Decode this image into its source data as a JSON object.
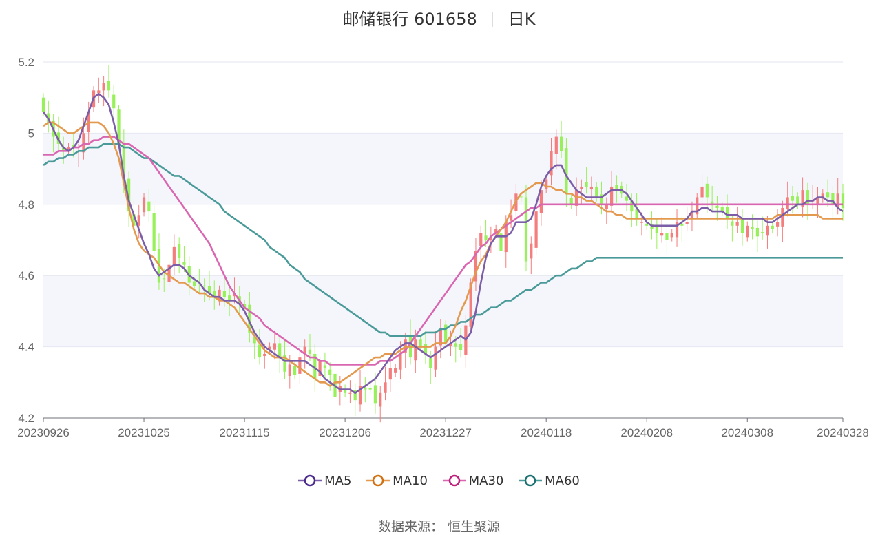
{
  "title": {
    "name": "邮储银行 601658",
    "period": "日K"
  },
  "source": "数据来源： 恒生聚源",
  "colors": {
    "up": "#f47d7d",
    "down": "#98f05a",
    "ma5": "#7b5ea7",
    "ma10": "#e39a4f",
    "ma30": "#d966b0",
    "ma60": "#4a9a9a"
  },
  "chart_data": {
    "type": "candlestick",
    "ylim": [
      4.2,
      5.2
    ],
    "yticks": [
      "4.2",
      "4.4",
      "4.6",
      "4.8",
      "5"
    ],
    "ytick_top": "5.2",
    "xticks": [
      {
        "label": "20230926",
        "index": 0
      },
      {
        "label": "20231025",
        "index": 20
      },
      {
        "label": "20231115",
        "index": 40
      },
      {
        "label": "20231206",
        "index": 60
      },
      {
        "label": "20231227",
        "index": 80
      },
      {
        "label": "20240118",
        "index": 100
      },
      {
        "label": "20240208",
        "index": 120
      },
      {
        "label": "20240308",
        "index": 140
      },
      {
        "label": "20240328",
        "index": 159
      }
    ],
    "n": 160,
    "legend": [
      {
        "name": "MA5",
        "color": "#7b5ea7"
      },
      {
        "name": "MA10",
        "color": "#e39a4f"
      },
      {
        "name": "MA30",
        "color": "#d966b0"
      },
      {
        "name": "MA60",
        "color": "#4a9a9a"
      }
    ],
    "closes": [
      5.06,
      5.03,
      4.99,
      4.97,
      4.95,
      4.96,
      4.96,
      4.95,
      5.0,
      5.06,
      5.12,
      5.12,
      5.14,
      5.12,
      5.07,
      4.97,
      4.86,
      4.78,
      4.74,
      4.77,
      4.82,
      4.78,
      4.67,
      4.58,
      4.59,
      4.63,
      4.68,
      4.65,
      4.63,
      4.58,
      4.57,
      4.58,
      4.57,
      4.55,
      4.54,
      4.56,
      4.54,
      4.53,
      4.55,
      4.52,
      4.51,
      4.44,
      4.41,
      4.37,
      4.38,
      4.4,
      4.41,
      4.37,
      4.33,
      4.35,
      4.32,
      4.37,
      4.4,
      4.38,
      4.31,
      4.36,
      4.34,
      4.32,
      4.26,
      4.29,
      4.27,
      4.27,
      4.25,
      4.29,
      4.28,
      4.28,
      4.24,
      4.27,
      4.3,
      4.34,
      4.34,
      4.38,
      4.42,
      4.37,
      4.42,
      4.4,
      4.38,
      4.34,
      4.4,
      4.45,
      4.41,
      4.41,
      4.4,
      4.39,
      4.46,
      4.58,
      4.67,
      4.72,
      4.7,
      4.71,
      4.73,
      4.67,
      4.75,
      4.77,
      4.83,
      4.82,
      4.64,
      4.69,
      4.78,
      4.84,
      4.87,
      4.95,
      4.99,
      4.95,
      4.83,
      4.8,
      4.84,
      4.85,
      4.85,
      4.85,
      4.82,
      4.8,
      4.8,
      4.85,
      4.84,
      4.83,
      4.81,
      4.78,
      4.76,
      4.75,
      4.74,
      4.73,
      4.72,
      4.72,
      4.7,
      4.72,
      4.75,
      4.74,
      4.75,
      4.78,
      4.82,
      4.85,
      4.82,
      4.8,
      4.79,
      4.78,
      4.76,
      4.74,
      4.75,
      4.72,
      4.74,
      4.73,
      4.71,
      4.72,
      4.74,
      4.73,
      4.75,
      4.79,
      4.82,
      4.81,
      4.8,
      4.84,
      4.8,
      4.81,
      4.82,
      4.83,
      4.82,
      4.8,
      4.83,
      4.79
    ],
    "ma5": [
      5.06,
      5.04,
      5.01,
      4.98,
      4.96,
      4.95,
      4.96,
      4.98,
      5.02,
      5.06,
      5.1,
      5.11,
      5.1,
      5.08,
      5.03,
      4.97,
      4.88,
      4.81,
      4.77,
      4.73,
      4.69,
      4.66,
      4.62,
      4.6,
      4.61,
      4.62,
      4.63,
      4.63,
      4.62,
      4.6,
      4.59,
      4.58,
      4.56,
      4.55,
      4.54,
      4.54,
      4.53,
      4.53,
      4.53,
      4.52,
      4.5,
      4.47,
      4.44,
      4.42,
      4.4,
      4.39,
      4.38,
      4.37,
      4.36,
      4.36,
      4.36,
      4.36,
      4.36,
      4.35,
      4.34,
      4.33,
      4.31,
      4.3,
      4.29,
      4.28,
      4.28,
      4.28,
      4.27,
      4.28,
      4.29,
      4.3,
      4.31,
      4.33,
      4.35,
      4.37,
      4.39,
      4.4,
      4.41,
      4.41,
      4.4,
      4.39,
      4.38,
      4.37,
      4.38,
      4.39,
      4.4,
      4.41,
      4.42,
      4.43,
      4.42,
      4.44,
      4.5,
      4.58,
      4.65,
      4.69,
      4.71,
      4.71,
      4.71,
      4.72,
      4.75,
      4.75,
      4.75,
      4.76,
      4.8,
      4.85,
      4.88,
      4.9,
      4.91,
      4.91,
      4.88,
      4.86,
      4.84,
      4.83,
      4.82,
      4.82,
      4.82,
      4.82,
      4.83,
      4.84,
      4.84,
      4.84,
      4.83,
      4.81,
      4.79,
      4.77,
      4.75,
      4.74,
      4.74,
      4.74,
      4.74,
      4.74,
      4.74,
      4.75,
      4.76,
      4.78,
      4.78,
      4.79,
      4.79,
      4.78,
      4.78,
      4.78,
      4.77,
      4.77,
      4.77,
      4.76,
      4.76,
      4.76,
      4.76,
      4.76,
      4.75,
      4.75,
      4.76,
      4.77,
      4.78,
      4.79,
      4.8,
      4.8,
      4.81,
      4.81,
      4.82,
      4.82,
      4.81,
      4.81,
      4.79,
      4.78
    ],
    "ma10": [
      5.02,
      5.03,
      5.03,
      5.02,
      5.01,
      5.0,
      5.0,
      5.01,
      5.02,
      5.03,
      5.03,
      5.03,
      5.02,
      5.0,
      4.97,
      4.93,
      4.86,
      4.79,
      4.73,
      4.69,
      4.67,
      4.66,
      4.65,
      4.63,
      4.61,
      4.6,
      4.59,
      4.58,
      4.58,
      4.57,
      4.56,
      4.55,
      4.55,
      4.54,
      4.54,
      4.53,
      4.53,
      4.52,
      4.51,
      4.49,
      4.47,
      4.45,
      4.43,
      4.41,
      4.39,
      4.38,
      4.37,
      4.37,
      4.37,
      4.36,
      4.35,
      4.34,
      4.33,
      4.32,
      4.31,
      4.3,
      4.3,
      4.29,
      4.3,
      4.3,
      4.31,
      4.32,
      4.33,
      4.34,
      4.35,
      4.36,
      4.37,
      4.37,
      4.38,
      4.38,
      4.38,
      4.39,
      4.4,
      4.4,
      4.4,
      4.4,
      4.4,
      4.4,
      4.41,
      4.41,
      4.41,
      4.43,
      4.46,
      4.5,
      4.53,
      4.57,
      4.61,
      4.64,
      4.66,
      4.69,
      4.71,
      4.73,
      4.75,
      4.78,
      4.81,
      4.83,
      4.84,
      4.85,
      4.86,
      4.86,
      4.85,
      4.85,
      4.84,
      4.84,
      4.83,
      4.83,
      4.82,
      4.82,
      4.81,
      4.81,
      4.8,
      4.79,
      4.78,
      4.78,
      4.77,
      4.77,
      4.76,
      4.76,
      4.76,
      4.76,
      4.76,
      4.76,
      4.76,
      4.76,
      4.76,
      4.76,
      4.76,
      4.76,
      4.76,
      4.76,
      4.76,
      4.76,
      4.76,
      4.76,
      4.76,
      4.76,
      4.76,
      4.76,
      4.76,
      4.76,
      4.76,
      4.76,
      4.76,
      4.76,
      4.76,
      4.76,
      4.77,
      4.77,
      4.77,
      4.77,
      4.77,
      4.77,
      4.77,
      4.77,
      4.77,
      4.76,
      4.76,
      4.76,
      4.76,
      4.76
    ],
    "ma30": [
      4.94,
      4.94,
      4.94,
      4.95,
      4.95,
      4.95,
      4.96,
      4.96,
      4.97,
      4.97,
      4.98,
      4.98,
      4.99,
      4.99,
      4.99,
      4.98,
      4.97,
      4.97,
      4.96,
      4.95,
      4.94,
      4.93,
      4.91,
      4.89,
      4.87,
      4.85,
      4.83,
      4.81,
      4.79,
      4.77,
      4.75,
      4.73,
      4.71,
      4.69,
      4.66,
      4.63,
      4.6,
      4.57,
      4.55,
      4.53,
      4.51,
      4.5,
      4.49,
      4.48,
      4.46,
      4.45,
      4.44,
      4.43,
      4.42,
      4.41,
      4.4,
      4.39,
      4.38,
      4.37,
      4.37,
      4.36,
      4.36,
      4.35,
      4.35,
      4.35,
      4.35,
      4.35,
      4.35,
      4.35,
      4.35,
      4.35,
      4.35,
      4.36,
      4.36,
      4.36,
      4.37,
      4.38,
      4.39,
      4.41,
      4.43,
      4.45,
      4.47,
      4.49,
      4.51,
      4.53,
      4.55,
      4.57,
      4.59,
      4.61,
      4.63,
      4.64,
      4.66,
      4.68,
      4.69,
      4.71,
      4.72,
      4.73,
      4.74,
      4.75,
      4.76,
      4.77,
      4.78,
      4.79,
      4.79,
      4.8,
      4.8,
      4.8,
      4.8,
      4.8,
      4.8,
      4.8,
      4.8,
      4.8,
      4.8,
      4.8,
      4.8,
      4.8,
      4.8,
      4.8,
      4.8,
      4.8,
      4.8,
      4.8,
      4.8,
      4.8,
      4.8,
      4.8,
      4.8,
      4.8,
      4.8,
      4.8,
      4.8,
      4.8,
      4.8,
      4.8,
      4.8,
      4.8,
      4.8,
      4.8,
      4.8,
      4.8,
      4.8,
      4.8,
      4.8,
      4.8,
      4.8,
      4.8,
      4.8,
      4.8,
      4.8,
      4.8,
      4.8,
      4.8,
      4.8,
      4.8,
      4.8,
      4.8,
      4.8,
      4.8,
      4.8,
      4.8,
      4.8,
      4.8,
      4.8,
      4.8
    ],
    "ma60": [
      4.91,
      4.92,
      4.92,
      4.93,
      4.93,
      4.94,
      4.94,
      4.95,
      4.95,
      4.96,
      4.96,
      4.96,
      4.97,
      4.97,
      4.97,
      4.97,
      4.96,
      4.96,
      4.95,
      4.94,
      4.93,
      4.93,
      4.92,
      4.91,
      4.9,
      4.89,
      4.88,
      4.88,
      4.87,
      4.86,
      4.85,
      4.84,
      4.83,
      4.82,
      4.81,
      4.8,
      4.78,
      4.77,
      4.76,
      4.75,
      4.74,
      4.73,
      4.72,
      4.71,
      4.7,
      4.68,
      4.67,
      4.66,
      4.65,
      4.63,
      4.62,
      4.61,
      4.59,
      4.58,
      4.57,
      4.56,
      4.55,
      4.54,
      4.53,
      4.52,
      4.51,
      4.5,
      4.49,
      4.48,
      4.47,
      4.46,
      4.45,
      4.44,
      4.44,
      4.43,
      4.43,
      4.43,
      4.43,
      4.43,
      4.43,
      4.43,
      4.44,
      4.44,
      4.44,
      4.45,
      4.45,
      4.46,
      4.46,
      4.47,
      4.47,
      4.48,
      4.49,
      4.49,
      4.5,
      4.51,
      4.51,
      4.52,
      4.53,
      4.53,
      4.54,
      4.55,
      4.56,
      4.56,
      4.57,
      4.58,
      4.58,
      4.59,
      4.6,
      4.6,
      4.61,
      4.62,
      4.62,
      4.63,
      4.64,
      4.64,
      4.65,
      4.65,
      4.65,
      4.65,
      4.65,
      4.65,
      4.65,
      4.65,
      4.65,
      4.65,
      4.65,
      4.65,
      4.65,
      4.65,
      4.65,
      4.65,
      4.65,
      4.65,
      4.65,
      4.65,
      4.65,
      4.65,
      4.65,
      4.65,
      4.65,
      4.65,
      4.65,
      4.65,
      4.65,
      4.65,
      4.65,
      4.65,
      4.65,
      4.65,
      4.65,
      4.65,
      4.65,
      4.65,
      4.65,
      4.65,
      4.65,
      4.65,
      4.65,
      4.65,
      4.65,
      4.65,
      4.65,
      4.65,
      4.65,
      4.65
    ]
  }
}
